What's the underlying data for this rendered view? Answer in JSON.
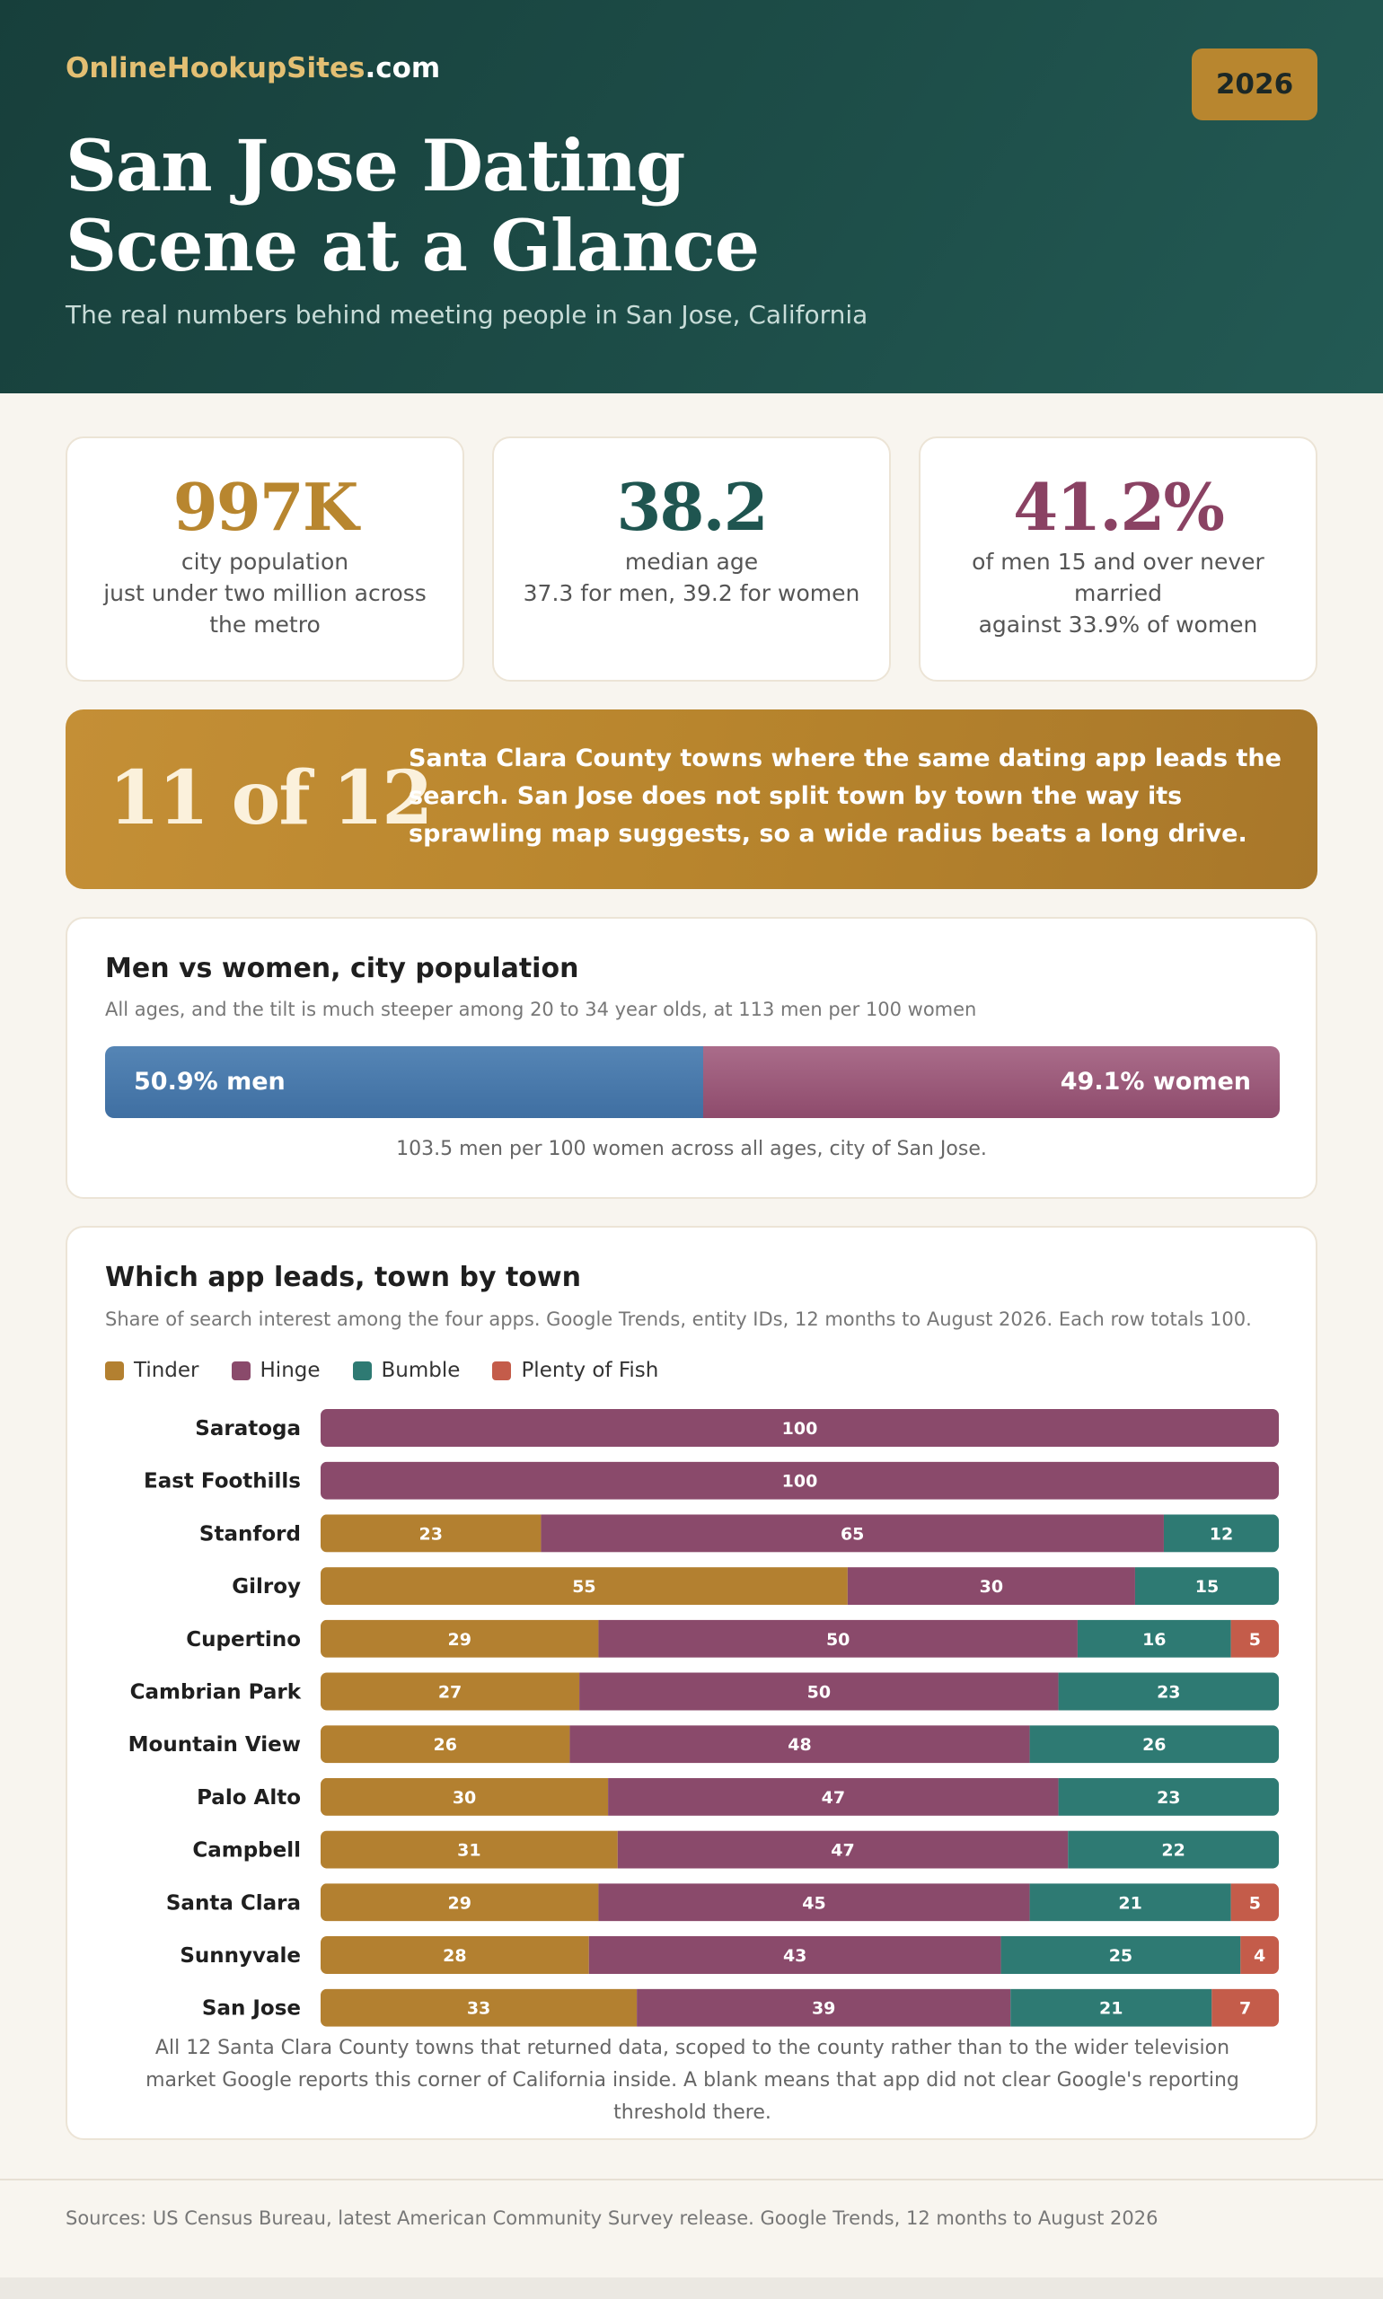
{
  "header": {
    "brand_main": "OnlineHookupSites",
    "brand_tld": ".com",
    "year": "2026",
    "title_line1": "San Jose Dating",
    "title_line2": "Scene at a Glance",
    "subtitle": "The real numbers behind meeting people in San Jose, California"
  },
  "stats": [
    {
      "value": "997K",
      "label": "city population",
      "detail": "just under two million across the metro",
      "color": "#b8862f"
    },
    {
      "value": "38.2",
      "label": "median age",
      "detail": "37.3 for men, 39.2 for women",
      "color": "#1f5550"
    },
    {
      "value": "41.2%",
      "label": "of men 15 and over never married",
      "detail": "against 33.9% of women",
      "color": "#8a4263"
    }
  ],
  "highlight": {
    "figure": "11 of 12",
    "text": "Santa Clara County towns where the same dating app leads the search. San Jose does not split town by town the way its sprawling map suggests, so a wide radius beats a long drive."
  },
  "gender": {
    "title": "Men vs women, city population",
    "subtitle": "All ages, and the tilt is much steeper among 20 to 34 year olds, at 113 men per 100 women",
    "men_share": 50.9,
    "women_share": 49.1,
    "men_label": "50.9% men",
    "women_label": "49.1% women",
    "note": "103.5 men per 100 women across all ages, city of San Jose.",
    "men_color": "#4a7aab",
    "women_color": "#9c5a7a"
  },
  "app_chart": {
    "title": "Which app leads, town by town",
    "subtitle": "Share of search interest among the four apps. Google Trends, entity IDs, 12 months to August 2026. Each row totals 100.",
    "note": "All 12 Santa Clara County towns that returned data, scoped to the county rather than to the wider television market Google reports this corner of California inside. A blank means that app did not clear Google's reporting threshold there."
  },
  "chart_data": {
    "type": "bar",
    "stacked": true,
    "orientation": "horizontal",
    "categories": [
      "Saratoga",
      "East Foothills",
      "Stanford",
      "Gilroy",
      "Cupertino",
      "Cambrian Park",
      "Mountain View",
      "Palo Alto",
      "Campbell",
      "Santa Clara",
      "Sunnyvale",
      "San Jose"
    ],
    "series": [
      {
        "name": "Tinder",
        "color": "#b38030",
        "values": [
          null,
          null,
          23,
          55,
          29,
          27,
          26,
          30,
          31,
          29,
          28,
          33
        ]
      },
      {
        "name": "Hinge",
        "color": "#8a4a6b",
        "values": [
          100,
          100,
          65,
          30,
          50,
          50,
          48,
          47,
          47,
          45,
          43,
          39
        ]
      },
      {
        "name": "Bumble",
        "color": "#2e7a73",
        "values": [
          null,
          null,
          12,
          15,
          16,
          23,
          26,
          23,
          22,
          21,
          25,
          21
        ]
      },
      {
        "name": "Plenty of Fish",
        "color": "#c45c4a",
        "values": [
          null,
          null,
          null,
          null,
          5,
          null,
          null,
          null,
          null,
          5,
          4,
          7
        ]
      }
    ],
    "xlim": [
      0,
      100
    ],
    "legend": "top-left"
  },
  "footer": {
    "sources": "Sources: US Census Bureau, latest American Community Survey release. Google Trends, 12 months to August 2026"
  }
}
